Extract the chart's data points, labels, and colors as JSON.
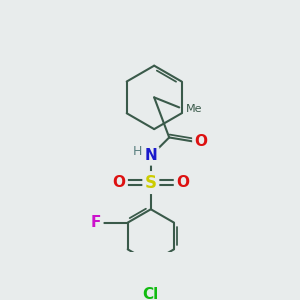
{
  "background_color": "#e8ecec",
  "bond_color": "#3a5a4a",
  "bond_width": 1.5,
  "atoms": {
    "N": {
      "color": "#1a1acc",
      "fontsize": 11,
      "fontweight": "bold"
    },
    "O": {
      "color": "#dd1111",
      "fontsize": 11,
      "fontweight": "bold"
    },
    "S": {
      "color": "#cccc00",
      "fontsize": 12,
      "fontweight": "bold"
    },
    "F": {
      "color": "#cc11cc",
      "fontsize": 11,
      "fontweight": "bold"
    },
    "Cl": {
      "color": "#11bb11",
      "fontsize": 11,
      "fontweight": "bold"
    },
    "H": {
      "color": "#5a8080",
      "fontsize": 10,
      "fontweight": "normal"
    },
    "C": {
      "color": "#3a5a4a",
      "fontsize": 9,
      "fontweight": "normal"
    }
  },
  "figsize": [
    3.0,
    3.0
  ],
  "dpi": 100
}
